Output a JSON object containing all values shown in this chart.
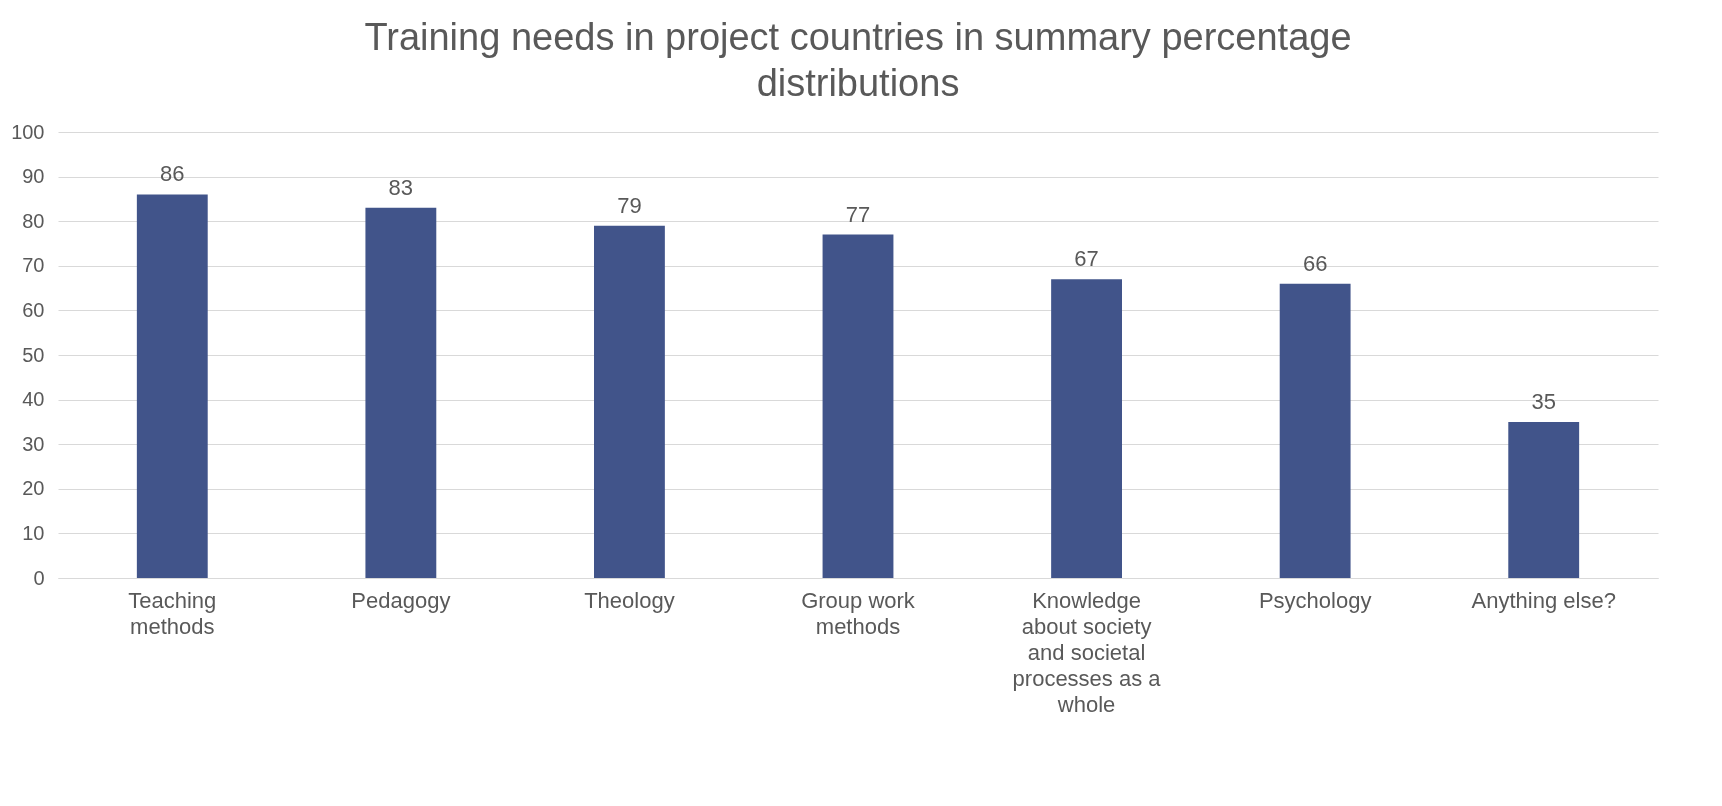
{
  "chart_data": {
    "type": "bar",
    "title": "Training needs in project countries in summary percentage distributions",
    "categories": [
      "Teaching methods",
      "Pedagogy",
      "Theology",
      "Group work methods",
      "Knowledge about society and societal processes as a whole",
      "Psychology",
      "Anything else?"
    ],
    "values": [
      86,
      83,
      79,
      77,
      67,
      66,
      35
    ],
    "color": "#41548a",
    "ylim": [
      0,
      100
    ],
    "yticks": [
      0,
      10,
      20,
      30,
      40,
      50,
      60,
      70,
      80,
      90,
      100
    ],
    "grid": "y",
    "data_labels": true
  }
}
